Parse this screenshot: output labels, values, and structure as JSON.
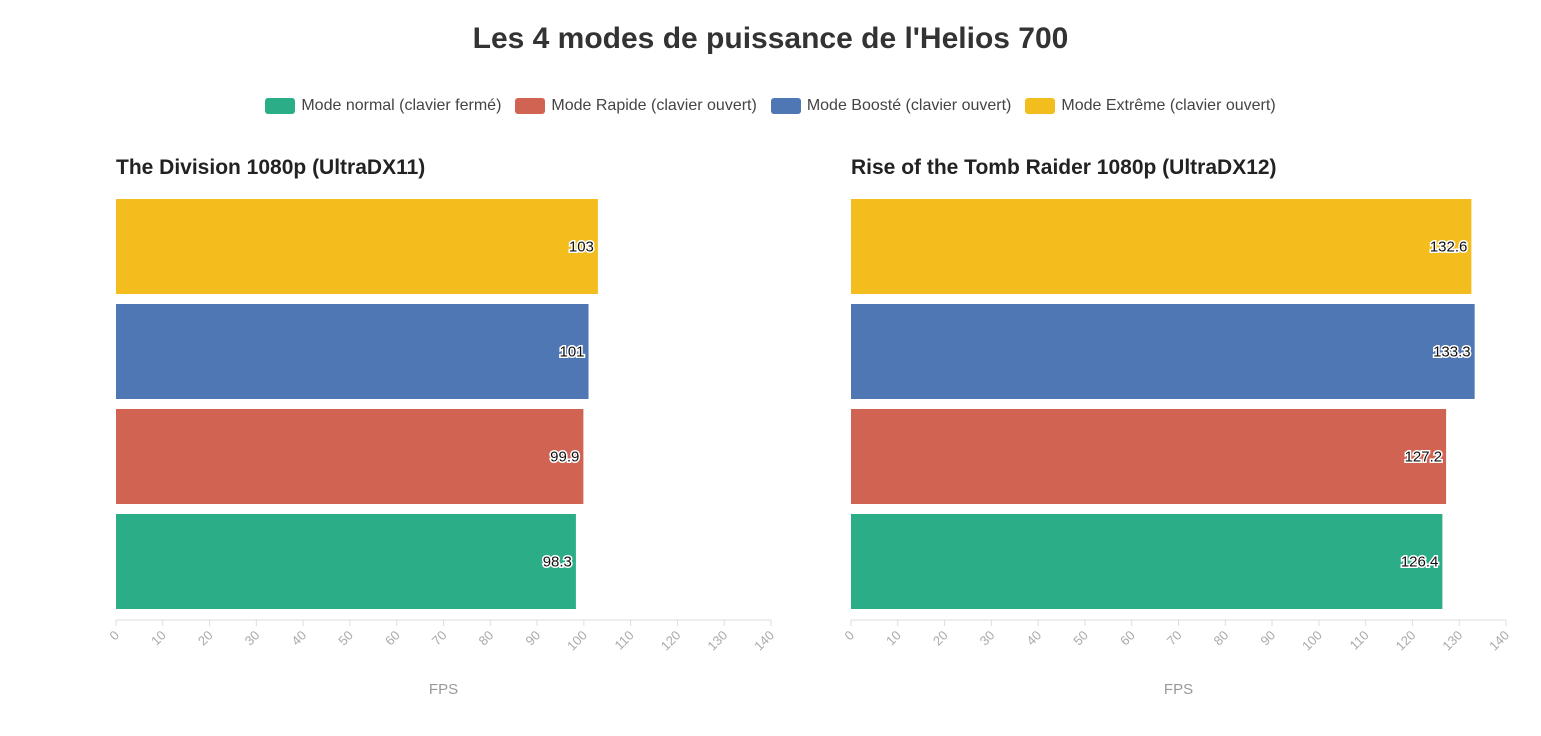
{
  "title": "Les 4 modes de puissance de l'Helios 700",
  "legend": [
    {
      "label": "Mode normal (clavier fermé)",
      "color": "#2bae88"
    },
    {
      "label": "Mode Rapide (clavier ouvert)",
      "color": "#d06352"
    },
    {
      "label": "Mode Boosté (clavier ouvert)",
      "color": "#4e77b4"
    },
    {
      "label": "Mode Extrême (clavier ouvert)",
      "color": "#f2bd1d"
    }
  ],
  "chart_data": [
    {
      "type": "bar",
      "orientation": "horizontal",
      "title": "The Division 1080p (UltraDX11)",
      "categories": [
        "Mode Extrême (clavier ouvert)",
        "Mode Boosté (clavier ouvert)",
        "Mode Rapide (clavier ouvert)",
        "Mode normal (clavier fermé)"
      ],
      "values": [
        103,
        101,
        99.9,
        98.3
      ],
      "value_labels": [
        "103",
        "101",
        "99.9",
        "98.3"
      ],
      "colors": [
        "#f2bd1d",
        "#4e77b4",
        "#d06352",
        "#2bae88"
      ],
      "xlabel": "FPS",
      "xlim": [
        0,
        140
      ],
      "ticks": [
        0,
        10,
        20,
        30,
        40,
        50,
        60,
        70,
        80,
        90,
        100,
        110,
        120,
        130,
        140
      ]
    },
    {
      "type": "bar",
      "orientation": "horizontal",
      "title": "Rise of the Tomb Raider 1080p (UltraDX12)",
      "categories": [
        "Mode Extrême (clavier ouvert)",
        "Mode Boosté (clavier ouvert)",
        "Mode Rapide (clavier ouvert)",
        "Mode normal (clavier fermé)"
      ],
      "values": [
        132.6,
        133.3,
        127.2,
        126.4
      ],
      "value_labels": [
        "132.6",
        "133.3",
        "127.2",
        "126.4"
      ],
      "colors": [
        "#f2bd1d",
        "#4e77b4",
        "#d06352",
        "#2bae88"
      ],
      "xlabel": "FPS",
      "xlim": [
        0,
        140
      ],
      "ticks": [
        0,
        10,
        20,
        30,
        40,
        50,
        60,
        70,
        80,
        90,
        100,
        110,
        120,
        130,
        140
      ]
    }
  ]
}
